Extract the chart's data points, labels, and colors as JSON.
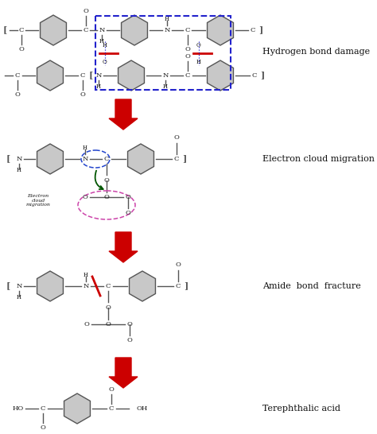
{
  "background_color": "#ffffff",
  "bond_color": "#555555",
  "text_color": "#111111",
  "arrow_color": "#cc0000",
  "blue_box_color": "#2222cc",
  "red_line_color": "#cc0000",
  "pink_ellipse_color": "#cc44aa",
  "blue_ellipse_color": "#2244cc",
  "green_arrow_color": "#005500",
  "hex_fill": "#c8c8c8",
  "hex_edge": "#555555",
  "labels": {
    "hydrogen_bond": "Hydrogen bond damage",
    "electron_cloud": "Electron cloud migration",
    "amide_bond": "Amide  bond  fracture",
    "terephthalic": "Terephthalic acid"
  },
  "figsize": [
    4.74,
    5.46
  ],
  "dpi": 100
}
